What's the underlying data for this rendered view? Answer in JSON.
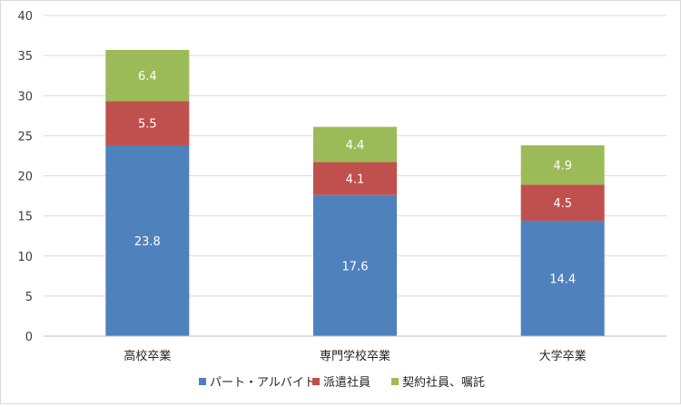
{
  "chart_data": {
    "type": "bar",
    "stacked": true,
    "categories": [
      "高校卒業",
      "専門学校卒業",
      "大学卒業"
    ],
    "series": [
      {
        "name": "パート・アルバイト",
        "values": [
          23.8,
          17.6,
          14.4
        ],
        "color": "#4f81bd"
      },
      {
        "name": "派遣社員",
        "values": [
          5.5,
          4.1,
          4.5
        ],
        "color": "#c0504d"
      },
      {
        "name": "契約社員、嘱託",
        "values": [
          6.4,
          4.4,
          4.9
        ],
        "color": "#9bbb59"
      }
    ],
    "ylim": [
      0,
      40
    ],
    "yticks": [
      0,
      5,
      10,
      15,
      20,
      25,
      30,
      35,
      40
    ],
    "grid": true,
    "legend": "bottom"
  }
}
